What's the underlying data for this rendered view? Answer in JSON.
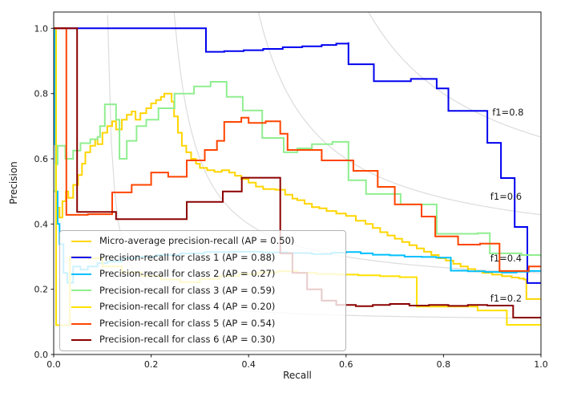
{
  "chart_data": {
    "type": "line",
    "subtype": "precision-recall-step-curves",
    "step": "post",
    "title": "",
    "xlabel": "Recall",
    "ylabel": "Precision",
    "xlim": [
      0.0,
      1.0
    ],
    "ylim": [
      0.0,
      1.05
    ],
    "xticks": [
      "0.0",
      "0.2",
      "0.4",
      "0.6",
      "0.8",
      "1.0"
    ],
    "yticks": [
      "0.0",
      "0.2",
      "0.4",
      "0.6",
      "0.8",
      "1.0"
    ],
    "grid": false,
    "legend_position": "lower left",
    "iso_f1": {
      "values": [
        0.2,
        0.4,
        0.6,
        0.8
      ],
      "color": "#dcdcdc",
      "labels": [
        {
          "text": "f1=0.2",
          "x": 0.896,
          "y": 0.172
        },
        {
          "text": "f1=0.4",
          "x": 0.896,
          "y": 0.295
        },
        {
          "text": "f1=0.6",
          "x": 0.896,
          "y": 0.485
        },
        {
          "text": "f1=0.8",
          "x": 0.9,
          "y": 0.743
        }
      ]
    },
    "series": [
      {
        "name": "micro-average",
        "ap": 0.5,
        "color": "#ffd500",
        "linewidth": 2,
        "points": [
          [
            0,
            1.0
          ],
          [
            0.005,
            1.0
          ],
          [
            0.005,
            0.42
          ],
          [
            0.008,
            0.45
          ],
          [
            0.012,
            0.42
          ],
          [
            0.018,
            0.47
          ],
          [
            0.025,
            0.5
          ],
          [
            0.03,
            0.48
          ],
          [
            0.04,
            0.52
          ],
          [
            0.05,
            0.55
          ],
          [
            0.058,
            0.585
          ],
          [
            0.065,
            0.62
          ],
          [
            0.075,
            0.64
          ],
          [
            0.085,
            0.66
          ],
          [
            0.09,
            0.645
          ],
          [
            0.1,
            0.68
          ],
          [
            0.11,
            0.7
          ],
          [
            0.12,
            0.715
          ],
          [
            0.128,
            0.69
          ],
          [
            0.14,
            0.72
          ],
          [
            0.15,
            0.735
          ],
          [
            0.16,
            0.745
          ],
          [
            0.168,
            0.72
          ],
          [
            0.178,
            0.74
          ],
          [
            0.19,
            0.755
          ],
          [
            0.2,
            0.77
          ],
          [
            0.21,
            0.78
          ],
          [
            0.22,
            0.79
          ],
          [
            0.227,
            0.8
          ],
          [
            0.242,
            0.775
          ],
          [
            0.247,
            0.73
          ],
          [
            0.255,
            0.68
          ],
          [
            0.263,
            0.64
          ],
          [
            0.272,
            0.62
          ],
          [
            0.282,
            0.6
          ],
          [
            0.292,
            0.585
          ],
          [
            0.3,
            0.572
          ],
          [
            0.315,
            0.565
          ],
          [
            0.33,
            0.56
          ],
          [
            0.345,
            0.565
          ],
          [
            0.36,
            0.558
          ],
          [
            0.372,
            0.548
          ],
          [
            0.385,
            0.538
          ],
          [
            0.4,
            0.527
          ],
          [
            0.415,
            0.515
          ],
          [
            0.43,
            0.507
          ],
          [
            0.455,
            0.505
          ],
          [
            0.475,
            0.49
          ],
          [
            0.49,
            0.478
          ],
          [
            0.5,
            0.473
          ],
          [
            0.515,
            0.462
          ],
          [
            0.53,
            0.452
          ],
          [
            0.545,
            0.448
          ],
          [
            0.56,
            0.44
          ],
          [
            0.58,
            0.432
          ],
          [
            0.6,
            0.425
          ],
          [
            0.62,
            0.41
          ],
          [
            0.64,
            0.4
          ],
          [
            0.655,
            0.388
          ],
          [
            0.67,
            0.375
          ],
          [
            0.685,
            0.365
          ],
          [
            0.7,
            0.355
          ],
          [
            0.715,
            0.345
          ],
          [
            0.73,
            0.335
          ],
          [
            0.745,
            0.325
          ],
          [
            0.76,
            0.315
          ],
          [
            0.775,
            0.305
          ],
          [
            0.79,
            0.295
          ],
          [
            0.805,
            0.288
          ],
          [
            0.82,
            0.278
          ],
          [
            0.835,
            0.27
          ],
          [
            0.85,
            0.262
          ],
          [
            0.865,
            0.255
          ],
          [
            0.88,
            0.25
          ],
          [
            0.9,
            0.245
          ],
          [
            0.92,
            0.24
          ],
          [
            0.94,
            0.236
          ],
          [
            0.955,
            0.233
          ],
          [
            0.965,
            0.23
          ],
          [
            0.97,
            0.17
          ],
          [
            1.0,
            0.17
          ]
        ]
      },
      {
        "name": "class 1",
        "ap": 0.88,
        "color": "#0000f0",
        "linewidth": 2,
        "points": [
          [
            0,
            1.0
          ],
          [
            0.3125,
            1.0
          ],
          [
            0.3125,
            0.928
          ],
          [
            0.35,
            0.93
          ],
          [
            0.39,
            0.933
          ],
          [
            0.43,
            0.937
          ],
          [
            0.47,
            0.942
          ],
          [
            0.51,
            0.945
          ],
          [
            0.55,
            0.949
          ],
          [
            0.58,
            0.953
          ],
          [
            0.605,
            0.957
          ],
          [
            0.605,
            0.89
          ],
          [
            0.657,
            0.89
          ],
          [
            0.657,
            0.838
          ],
          [
            0.733,
            0.838
          ],
          [
            0.733,
            0.845
          ],
          [
            0.786,
            0.845
          ],
          [
            0.786,
            0.816
          ],
          [
            0.81,
            0.816
          ],
          [
            0.81,
            0.747
          ],
          [
            0.89,
            0.743
          ],
          [
            0.89,
            0.649
          ],
          [
            0.918,
            0.649
          ],
          [
            0.918,
            0.541
          ],
          [
            0.946,
            0.541
          ],
          [
            0.946,
            0.391
          ],
          [
            0.972,
            0.391
          ],
          [
            0.972,
            0.219
          ],
          [
            1.0,
            0.219
          ]
        ]
      },
      {
        "name": "class 2",
        "ap": 0.27,
        "color": "#00bfff",
        "linewidth": 2,
        "points": [
          [
            0,
            1.0
          ],
          [
            0.002,
            1.0
          ],
          [
            0.002,
            0.645
          ],
          [
            0.004,
            0.5
          ],
          [
            0.008,
            0.4
          ],
          [
            0.012,
            0.338
          ],
          [
            0.02,
            0.25
          ],
          [
            0.028,
            0.22
          ],
          [
            0.04,
            0.27
          ],
          [
            0.055,
            0.26
          ],
          [
            0.07,
            0.27
          ],
          [
            0.09,
            0.28
          ],
          [
            0.11,
            0.285
          ],
          [
            0.14,
            0.295
          ],
          [
            0.17,
            0.3
          ],
          [
            0.21,
            0.305
          ],
          [
            0.26,
            0.31
          ],
          [
            0.31,
            0.314
          ],
          [
            0.37,
            0.315
          ],
          [
            0.43,
            0.313
          ],
          [
            0.48,
            0.311
          ],
          [
            0.53,
            0.308
          ],
          [
            0.57,
            0.312
          ],
          [
            0.6,
            0.314
          ],
          [
            0.63,
            0.31
          ],
          [
            0.655,
            0.306
          ],
          [
            0.69,
            0.304
          ],
          [
            0.72,
            0.3
          ],
          [
            0.755,
            0.299
          ],
          [
            0.785,
            0.297
          ],
          [
            0.815,
            0.257
          ],
          [
            0.85,
            0.255
          ],
          [
            0.885,
            0.253
          ],
          [
            0.92,
            0.251
          ],
          [
            0.95,
            0.254
          ],
          [
            0.975,
            0.256
          ],
          [
            1.0,
            0.258
          ]
        ]
      },
      {
        "name": "class 3",
        "ap": 0.59,
        "color": "#90ee90",
        "linewidth": 2,
        "points": [
          [
            0,
            0.5
          ],
          [
            0.004,
            0.583
          ],
          [
            0.008,
            0.64
          ],
          [
            0.018,
            0.64
          ],
          [
            0.024,
            0.6
          ],
          [
            0.04,
            0.625
          ],
          [
            0.055,
            0.648
          ],
          [
            0.075,
            0.66
          ],
          [
            0.09,
            0.667
          ],
          [
            0.095,
            0.7
          ],
          [
            0.105,
            0.767
          ],
          [
            0.125,
            0.767
          ],
          [
            0.128,
            0.72
          ],
          [
            0.135,
            0.6
          ],
          [
            0.15,
            0.655
          ],
          [
            0.17,
            0.7
          ],
          [
            0.19,
            0.72
          ],
          [
            0.215,
            0.755
          ],
          [
            0.248,
            0.8
          ],
          [
            0.288,
            0.822
          ],
          [
            0.322,
            0.836
          ],
          [
            0.355,
            0.836
          ],
          [
            0.355,
            0.79
          ],
          [
            0.388,
            0.79
          ],
          [
            0.388,
            0.748
          ],
          [
            0.428,
            0.748
          ],
          [
            0.428,
            0.664
          ],
          [
            0.445,
            0.664
          ],
          [
            0.472,
            0.62
          ],
          [
            0.5,
            0.632
          ],
          [
            0.53,
            0.645
          ],
          [
            0.572,
            0.652
          ],
          [
            0.605,
            0.534
          ],
          [
            0.641,
            0.492
          ],
          [
            0.712,
            0.46
          ],
          [
            0.786,
            0.455
          ],
          [
            0.786,
            0.37
          ],
          [
            0.87,
            0.372
          ],
          [
            0.895,
            0.31
          ],
          [
            0.96,
            0.305
          ],
          [
            1.0,
            0.3
          ]
        ]
      },
      {
        "name": "class 4",
        "ap": 0.2,
        "color": "#ffe000",
        "linewidth": 2,
        "points": [
          [
            0,
            1.0
          ],
          [
            0.005,
            1.0
          ],
          [
            0.005,
            0.09
          ],
          [
            0.033,
            0.09
          ],
          [
            0.033,
            0.3
          ],
          [
            0.07,
            0.295
          ],
          [
            0.1,
            0.27
          ],
          [
            0.14,
            0.252
          ],
          [
            0.18,
            0.24
          ],
          [
            0.22,
            0.23
          ],
          [
            0.26,
            0.222
          ],
          [
            0.3,
            0.232
          ],
          [
            0.34,
            0.24
          ],
          [
            0.38,
            0.247
          ],
          [
            0.42,
            0.252
          ],
          [
            0.46,
            0.255
          ],
          [
            0.5,
            0.25
          ],
          [
            0.54,
            0.247
          ],
          [
            0.58,
            0.245
          ],
          [
            0.625,
            0.243
          ],
          [
            0.67,
            0.24
          ],
          [
            0.71,
            0.237
          ],
          [
            0.745,
            0.235
          ],
          [
            0.745,
            0.147
          ],
          [
            0.87,
            0.147
          ],
          [
            0.87,
            0.135
          ],
          [
            0.93,
            0.135
          ],
          [
            0.93,
            0.091
          ],
          [
            1.0,
            0.091
          ]
        ]
      },
      {
        "name": "class 5",
        "ap": 0.54,
        "color": "#ff4500",
        "linewidth": 2,
        "points": [
          [
            0,
            1.0
          ],
          [
            0.026,
            1.0
          ],
          [
            0.026,
            0.428
          ],
          [
            0.07,
            0.43
          ],
          [
            0.12,
            0.497
          ],
          [
            0.16,
            0.52
          ],
          [
            0.2,
            0.558
          ],
          [
            0.235,
            0.545
          ],
          [
            0.273,
            0.595
          ],
          [
            0.31,
            0.627
          ],
          [
            0.335,
            0.655
          ],
          [
            0.35,
            0.713
          ],
          [
            0.385,
            0.726
          ],
          [
            0.4,
            0.71
          ],
          [
            0.435,
            0.715
          ],
          [
            0.465,
            0.677
          ],
          [
            0.48,
            0.627
          ],
          [
            0.525,
            0.627
          ],
          [
            0.55,
            0.595
          ],
          [
            0.615,
            0.563
          ],
          [
            0.665,
            0.514
          ],
          [
            0.7,
            0.46
          ],
          [
            0.755,
            0.423
          ],
          [
            0.783,
            0.362
          ],
          [
            0.83,
            0.337
          ],
          [
            0.875,
            0.34
          ],
          [
            0.915,
            0.34
          ],
          [
            0.915,
            0.256
          ],
          [
            0.965,
            0.256
          ],
          [
            0.975,
            0.27
          ],
          [
            1.0,
            0.27
          ]
        ]
      },
      {
        "name": "class 6",
        "ap": 0.3,
        "color": "#8b0000",
        "linewidth": 2,
        "points": [
          [
            0,
            1.0
          ],
          [
            0.048,
            1.0
          ],
          [
            0.048,
            0.437
          ],
          [
            0.128,
            0.437
          ],
          [
            0.128,
            0.415
          ],
          [
            0.273,
            0.415
          ],
          [
            0.273,
            0.468
          ],
          [
            0.347,
            0.468
          ],
          [
            0.347,
            0.5
          ],
          [
            0.386,
            0.5
          ],
          [
            0.386,
            0.542
          ],
          [
            0.465,
            0.542
          ],
          [
            0.465,
            0.31
          ],
          [
            0.49,
            0.25
          ],
          [
            0.52,
            0.2
          ],
          [
            0.55,
            0.165
          ],
          [
            0.58,
            0.152
          ],
          [
            0.62,
            0.148
          ],
          [
            0.655,
            0.152
          ],
          [
            0.69,
            0.155
          ],
          [
            0.73,
            0.15
          ],
          [
            0.77,
            0.152
          ],
          [
            0.81,
            0.149
          ],
          [
            0.85,
            0.152
          ],
          [
            0.89,
            0.15
          ],
          [
            0.943,
            0.152
          ],
          [
            0.943,
            0.113
          ],
          [
            1.0,
            0.113
          ]
        ]
      }
    ]
  },
  "legend": {
    "entries": [
      {
        "label": "Micro-average precision-recall (AP = 0.50)",
        "color": "#ffd500"
      },
      {
        "label": "Precision-recall for class 1 (AP = 0.88)",
        "color": "#0000f0"
      },
      {
        "label": "Precision-recall for class 2 (AP = 0.27)",
        "color": "#00bfff"
      },
      {
        "label": "Precision-recall for class 3 (AP = 0.59)",
        "color": "#90ee90"
      },
      {
        "label": "Precision-recall for class 4 (AP = 0.20)",
        "color": "#ffe000"
      },
      {
        "label": "Precision-recall for class 5 (AP = 0.54)",
        "color": "#ff4500"
      },
      {
        "label": "Precision-recall for class 6 (AP = 0.30)",
        "color": "#8b0000"
      }
    ]
  }
}
